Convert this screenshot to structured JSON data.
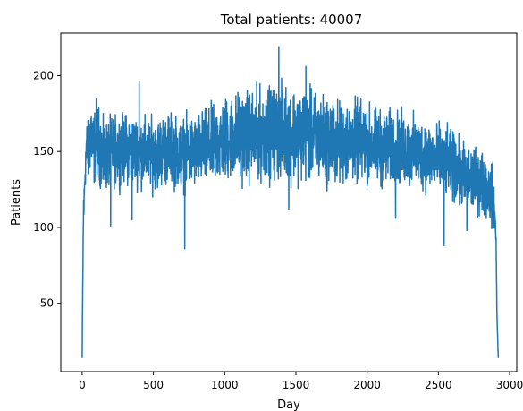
{
  "chart_data": {
    "type": "line",
    "title": "Total patients: 40007",
    "xlabel": "Day",
    "ylabel": "Patients",
    "xlim": [
      -150,
      3050
    ],
    "ylim": [
      5,
      228
    ],
    "xticks": [
      0,
      500,
      1000,
      1500,
      2000,
      2500,
      3000
    ],
    "yticks": [
      50,
      100,
      150,
      200
    ],
    "grid": false,
    "legend": "none",
    "series": [
      {
        "color": "#1f77b4",
        "x_start": 0,
        "x_end": 2920,
        "anchor_points": [
          [
            0,
            14
          ],
          [
            8,
            100
          ],
          [
            18,
            130
          ],
          [
            30,
            155
          ],
          [
            45,
            148
          ],
          [
            60,
            165
          ],
          [
            80,
            150
          ],
          [
            100,
            160
          ],
          [
            150,
            145
          ],
          [
            200,
            150
          ],
          [
            300,
            152
          ],
          [
            400,
            150
          ],
          [
            500,
            148
          ],
          [
            600,
            152
          ],
          [
            700,
            148
          ],
          [
            800,
            150
          ],
          [
            900,
            153
          ],
          [
            1000,
            158
          ],
          [
            1100,
            160
          ],
          [
            1200,
            160
          ],
          [
            1300,
            162
          ],
          [
            1400,
            163
          ],
          [
            1500,
            162
          ],
          [
            1600,
            160
          ],
          [
            1700,
            158
          ],
          [
            1800,
            155
          ],
          [
            1900,
            157
          ],
          [
            2000,
            155
          ],
          [
            2100,
            152
          ],
          [
            2200,
            152
          ],
          [
            2300,
            150
          ],
          [
            2400,
            148
          ],
          [
            2500,
            145
          ],
          [
            2600,
            140
          ],
          [
            2700,
            132
          ],
          [
            2800,
            130
          ],
          [
            2850,
            125
          ],
          [
            2880,
            120
          ],
          [
            2895,
            110
          ],
          [
            2905,
            90
          ],
          [
            2910,
            50
          ],
          [
            2915,
            30
          ],
          [
            2920,
            14
          ]
        ],
        "noise_amplitude": [
          [
            0,
            4
          ],
          [
            60,
            15
          ],
          [
            200,
            13
          ],
          [
            800,
            14
          ],
          [
            1100,
            17
          ],
          [
            1500,
            18
          ],
          [
            1800,
            16
          ],
          [
            2200,
            14
          ],
          [
            2600,
            13
          ],
          [
            2880,
            12
          ],
          [
            2905,
            3
          ]
        ],
        "notable_points": [
          [
            0,
            14
          ],
          [
            10,
            118
          ],
          [
            200,
            101
          ],
          [
            350,
            105
          ],
          [
            400,
            196
          ],
          [
            720,
            86
          ],
          [
            1300,
            180
          ],
          [
            1380,
            219
          ],
          [
            1450,
            112
          ],
          [
            1570,
            206
          ],
          [
            2200,
            106
          ],
          [
            2540,
            88
          ],
          [
            2700,
            98
          ],
          [
            2920,
            14
          ]
        ]
      }
    ]
  }
}
